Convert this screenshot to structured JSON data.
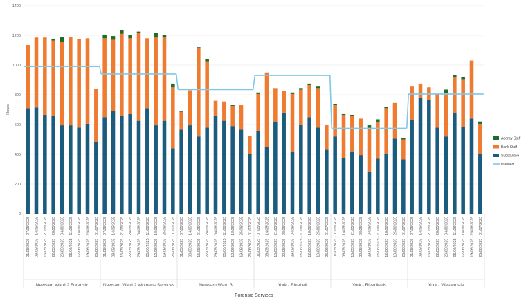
{
  "chart_data": {
    "type": "bar",
    "stacked": true,
    "ylabel": "Hours",
    "xlabel": "Forensic Services",
    "ylim": [
      0,
      1400
    ],
    "y_ticks": [
      0,
      200,
      400,
      600,
      800,
      1000,
      1200,
      1400
    ],
    "grid": true,
    "legend_position": "right",
    "colors": {
      "substantive": "#1a5b7e",
      "bank": "#ee7b30",
      "agency": "#1f6b2a",
      "planned": "#7ec8e8",
      "grid": "#e6e6e6",
      "axis_text": "#595959"
    },
    "groups": [
      {
        "name": "Newsam Ward 2 Forensic",
        "periods": [
          "01/05/2025 - 07/05/2025",
          "08/05/2025 - 14/05/2025",
          "15/05/2025 - 21/05/2025",
          "22/05/2025 - 28/05/2025",
          "29/05/2025 - 04/06/2025",
          "05/06/2025 - 11/06/2025",
          "12/06/2025 - 18/06/2025",
          "19/06/2025 - 25/06/2025",
          "26/06/2025 - 01/07/2025"
        ],
        "substantive": [
          710,
          715,
          665,
          660,
          595,
          595,
          580,
          605,
          485
        ],
        "bank": [
          425,
          470,
          520,
          505,
          560,
          595,
          595,
          575,
          355
        ],
        "agency": [
          0,
          0,
          0,
          10,
          35,
          0,
          0,
          0,
          0
        ],
        "planned": [
          990,
          990,
          990,
          990,
          990,
          990,
          990,
          990,
          990
        ]
      },
      {
        "name": "Newsam Ward 2 Womens Services",
        "periods": [
          "01/05/2025 - 07/05/2025",
          "08/05/2025 - 14/05/2025",
          "15/05/2025 - 21/05/2025",
          "22/05/2025 - 28/05/2025",
          "29/05/2025 - 04/06/2025",
          "05/06/2025 - 11/06/2025",
          "12/06/2025 - 18/06/2025",
          "19/06/2025 - 25/06/2025",
          "26/06/2025 - 01/07/2025"
        ],
        "substantive": [
          650,
          690,
          660,
          670,
          625,
          710,
          595,
          625,
          440
        ],
        "bank": [
          530,
          480,
          550,
          510,
          590,
          470,
          590,
          560,
          410
        ],
        "agency": [
          25,
          25,
          25,
          20,
          10,
          0,
          30,
          15,
          25
        ],
        "planned": [
          940,
          940,
          940,
          940,
          940,
          940,
          940,
          940,
          940
        ]
      },
      {
        "name": "Newsam Ward 3",
        "periods": [
          "01/05/2025 - 07/05/2025",
          "08/05/2025 - 14/05/2025",
          "15/05/2025 - 21/05/2025",
          "22/05/2025 - 28/05/2025",
          "29/05/2025 - 04/06/2025",
          "05/06/2025 - 11/06/2025",
          "12/06/2025 - 18/06/2025",
          "19/06/2025 - 25/06/2025",
          "26/06/2025 - 01/07/2025"
        ],
        "substantive": [
          565,
          595,
          520,
          580,
          660,
          625,
          590,
          565,
          400
        ],
        "bank": [
          120,
          235,
          595,
          445,
          100,
          130,
          135,
          165,
          120
        ],
        "agency": [
          5,
          0,
          5,
          15,
          0,
          0,
          5,
          0,
          5
        ],
        "planned": [
          835,
          835,
          835,
          835,
          835,
          835,
          835,
          835,
          835
        ]
      },
      {
        "name": "York - Bluebell",
        "periods": [
          "01/05/2025 - 07/05/2025",
          "08/05/2025 - 14/05/2025",
          "15/05/2025 - 21/05/2025",
          "22/05/2025 - 28/05/2025",
          "29/05/2025 - 04/06/2025",
          "05/06/2025 - 11/06/2025",
          "12/06/2025 - 18/06/2025",
          "19/06/2025 - 25/06/2025",
          "26/06/2025 - 01/07/2025"
        ],
        "substantive": [
          555,
          450,
          620,
          680,
          420,
          600,
          650,
          580,
          430
        ],
        "bank": [
          250,
          500,
          225,
          145,
          385,
          235,
          215,
          265,
          165
        ],
        "agency": [
          10,
          0,
          0,
          0,
          10,
          10,
          10,
          10,
          0
        ],
        "planned": [
          930,
          930,
          930,
          930,
          930,
          930,
          930,
          930,
          930
        ]
      },
      {
        "name": "York - Riverfields",
        "periods": [
          "01/05/2025 - 07/05/2025",
          "08/05/2025 - 14/05/2025",
          "15/05/2025 - 21/05/2025",
          "22/05/2025 - 28/05/2025",
          "29/05/2025 - 04/06/2025",
          "05/06/2025 - 11/06/2025",
          "12/06/2025 - 18/06/2025",
          "19/06/2025 - 25/06/2025",
          "26/06/2025 - 01/07/2025"
        ],
        "substantive": [
          520,
          375,
          420,
          395,
          285,
          370,
          400,
          505,
          365
        ],
        "bank": [
          210,
          290,
          240,
          245,
          290,
          245,
          310,
          240,
          135
        ],
        "agency": [
          5,
          5,
          5,
          0,
          20,
          20,
          10,
          0,
          10
        ],
        "planned": [
          575,
          575,
          575,
          575,
          575,
          575,
          575,
          575,
          575
        ]
      },
      {
        "name": "York - Westerdale",
        "periods": [
          "01/05/2025 - 07/05/2025",
          "08/05/2025 - 14/05/2025",
          "15/05/2025 - 21/05/2025",
          "22/05/2025 - 28/05/2025",
          "29/05/2025 - 04/06/2025",
          "05/06/2025 - 11/06/2025",
          "12/06/2025 - 18/06/2025",
          "19/06/2025 - 25/06/2025",
          "26/06/2025 - 01/07/2025"
        ],
        "substantive": [
          630,
          780,
          765,
          580,
          520,
          675,
          585,
          640,
          400
        ],
        "bank": [
          225,
          95,
          85,
          225,
          290,
          245,
          320,
          390,
          205
        ],
        "agency": [
          0,
          0,
          0,
          0,
          25,
          10,
          15,
          0,
          15
        ],
        "planned": [
          805,
          805,
          805,
          805,
          805,
          805,
          805,
          805,
          805
        ]
      }
    ],
    "legend": [
      {
        "key": "agency",
        "label": "Agency Staff",
        "kind": "box"
      },
      {
        "key": "bank",
        "label": "Bank Staff",
        "kind": "box"
      },
      {
        "key": "substantive",
        "label": "Substantive",
        "kind": "box"
      },
      {
        "key": "planned",
        "label": "Planned",
        "kind": "line"
      }
    ]
  }
}
